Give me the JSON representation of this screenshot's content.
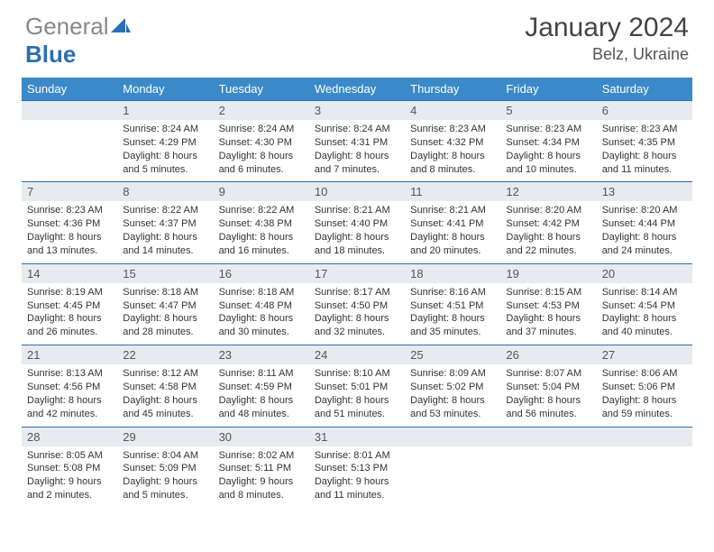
{
  "logo": {
    "gray": "General",
    "blue": "Blue"
  },
  "title": "January 2024",
  "location": "Belz, Ukraine",
  "colors": {
    "header_bg": "#3a89c9",
    "header_text": "#ffffff",
    "daynum_bg": "#e7ebef",
    "border": "#2b6fb0",
    "text": "#333333"
  },
  "dow": [
    "Sunday",
    "Monday",
    "Tuesday",
    "Wednesday",
    "Thursday",
    "Friday",
    "Saturday"
  ],
  "weeks": [
    [
      {
        "n": "",
        "sr": "",
        "ss": "",
        "dl": ""
      },
      {
        "n": "1",
        "sr": "Sunrise: 8:24 AM",
        "ss": "Sunset: 4:29 PM",
        "dl": "Daylight: 8 hours and 5 minutes."
      },
      {
        "n": "2",
        "sr": "Sunrise: 8:24 AM",
        "ss": "Sunset: 4:30 PM",
        "dl": "Daylight: 8 hours and 6 minutes."
      },
      {
        "n": "3",
        "sr": "Sunrise: 8:24 AM",
        "ss": "Sunset: 4:31 PM",
        "dl": "Daylight: 8 hours and 7 minutes."
      },
      {
        "n": "4",
        "sr": "Sunrise: 8:23 AM",
        "ss": "Sunset: 4:32 PM",
        "dl": "Daylight: 8 hours and 8 minutes."
      },
      {
        "n": "5",
        "sr": "Sunrise: 8:23 AM",
        "ss": "Sunset: 4:34 PM",
        "dl": "Daylight: 8 hours and 10 minutes."
      },
      {
        "n": "6",
        "sr": "Sunrise: 8:23 AM",
        "ss": "Sunset: 4:35 PM",
        "dl": "Daylight: 8 hours and 11 minutes."
      }
    ],
    [
      {
        "n": "7",
        "sr": "Sunrise: 8:23 AM",
        "ss": "Sunset: 4:36 PM",
        "dl": "Daylight: 8 hours and 13 minutes."
      },
      {
        "n": "8",
        "sr": "Sunrise: 8:22 AM",
        "ss": "Sunset: 4:37 PM",
        "dl": "Daylight: 8 hours and 14 minutes."
      },
      {
        "n": "9",
        "sr": "Sunrise: 8:22 AM",
        "ss": "Sunset: 4:38 PM",
        "dl": "Daylight: 8 hours and 16 minutes."
      },
      {
        "n": "10",
        "sr": "Sunrise: 8:21 AM",
        "ss": "Sunset: 4:40 PM",
        "dl": "Daylight: 8 hours and 18 minutes."
      },
      {
        "n": "11",
        "sr": "Sunrise: 8:21 AM",
        "ss": "Sunset: 4:41 PM",
        "dl": "Daylight: 8 hours and 20 minutes."
      },
      {
        "n": "12",
        "sr": "Sunrise: 8:20 AM",
        "ss": "Sunset: 4:42 PM",
        "dl": "Daylight: 8 hours and 22 minutes."
      },
      {
        "n": "13",
        "sr": "Sunrise: 8:20 AM",
        "ss": "Sunset: 4:44 PM",
        "dl": "Daylight: 8 hours and 24 minutes."
      }
    ],
    [
      {
        "n": "14",
        "sr": "Sunrise: 8:19 AM",
        "ss": "Sunset: 4:45 PM",
        "dl": "Daylight: 8 hours and 26 minutes."
      },
      {
        "n": "15",
        "sr": "Sunrise: 8:18 AM",
        "ss": "Sunset: 4:47 PM",
        "dl": "Daylight: 8 hours and 28 minutes."
      },
      {
        "n": "16",
        "sr": "Sunrise: 8:18 AM",
        "ss": "Sunset: 4:48 PM",
        "dl": "Daylight: 8 hours and 30 minutes."
      },
      {
        "n": "17",
        "sr": "Sunrise: 8:17 AM",
        "ss": "Sunset: 4:50 PM",
        "dl": "Daylight: 8 hours and 32 minutes."
      },
      {
        "n": "18",
        "sr": "Sunrise: 8:16 AM",
        "ss": "Sunset: 4:51 PM",
        "dl": "Daylight: 8 hours and 35 minutes."
      },
      {
        "n": "19",
        "sr": "Sunrise: 8:15 AM",
        "ss": "Sunset: 4:53 PM",
        "dl": "Daylight: 8 hours and 37 minutes."
      },
      {
        "n": "20",
        "sr": "Sunrise: 8:14 AM",
        "ss": "Sunset: 4:54 PM",
        "dl": "Daylight: 8 hours and 40 minutes."
      }
    ],
    [
      {
        "n": "21",
        "sr": "Sunrise: 8:13 AM",
        "ss": "Sunset: 4:56 PM",
        "dl": "Daylight: 8 hours and 42 minutes."
      },
      {
        "n": "22",
        "sr": "Sunrise: 8:12 AM",
        "ss": "Sunset: 4:58 PM",
        "dl": "Daylight: 8 hours and 45 minutes."
      },
      {
        "n": "23",
        "sr": "Sunrise: 8:11 AM",
        "ss": "Sunset: 4:59 PM",
        "dl": "Daylight: 8 hours and 48 minutes."
      },
      {
        "n": "24",
        "sr": "Sunrise: 8:10 AM",
        "ss": "Sunset: 5:01 PM",
        "dl": "Daylight: 8 hours and 51 minutes."
      },
      {
        "n": "25",
        "sr": "Sunrise: 8:09 AM",
        "ss": "Sunset: 5:02 PM",
        "dl": "Daylight: 8 hours and 53 minutes."
      },
      {
        "n": "26",
        "sr": "Sunrise: 8:07 AM",
        "ss": "Sunset: 5:04 PM",
        "dl": "Daylight: 8 hours and 56 minutes."
      },
      {
        "n": "27",
        "sr": "Sunrise: 8:06 AM",
        "ss": "Sunset: 5:06 PM",
        "dl": "Daylight: 8 hours and 59 minutes."
      }
    ],
    [
      {
        "n": "28",
        "sr": "Sunrise: 8:05 AM",
        "ss": "Sunset: 5:08 PM",
        "dl": "Daylight: 9 hours and 2 minutes."
      },
      {
        "n": "29",
        "sr": "Sunrise: 8:04 AM",
        "ss": "Sunset: 5:09 PM",
        "dl": "Daylight: 9 hours and 5 minutes."
      },
      {
        "n": "30",
        "sr": "Sunrise: 8:02 AM",
        "ss": "Sunset: 5:11 PM",
        "dl": "Daylight: 9 hours and 8 minutes."
      },
      {
        "n": "31",
        "sr": "Sunrise: 8:01 AM",
        "ss": "Sunset: 5:13 PM",
        "dl": "Daylight: 9 hours and 11 minutes."
      },
      {
        "n": "",
        "sr": "",
        "ss": "",
        "dl": ""
      },
      {
        "n": "",
        "sr": "",
        "ss": "",
        "dl": ""
      },
      {
        "n": "",
        "sr": "",
        "ss": "",
        "dl": ""
      }
    ]
  ]
}
